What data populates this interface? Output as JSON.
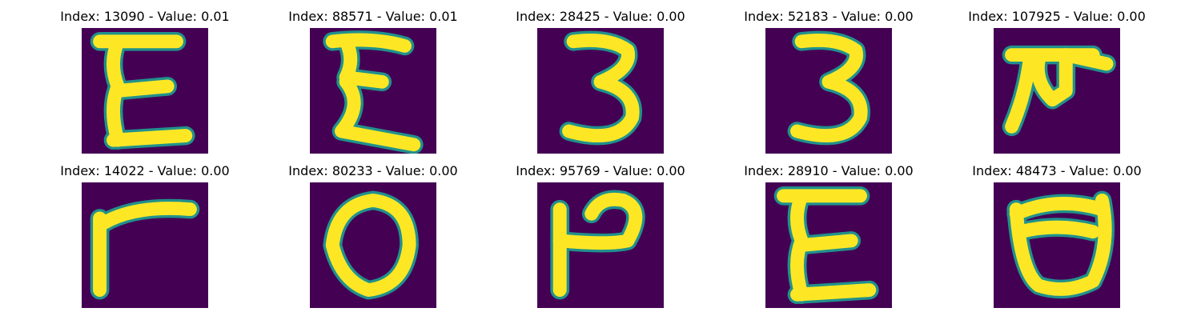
{
  "figure": {
    "colors": {
      "background": "#440154",
      "glyph": "#fde725",
      "glyph_edge": "#21918c"
    },
    "panels": [
      {
        "index": "13090",
        "value": "0.01",
        "title": "Index: 13090 - Value: 0.01",
        "glyph": "E"
      },
      {
        "index": "88571",
        "value": "0.01",
        "title": "Index: 88571 - Value: 0.01",
        "glyph": "Σ-like"
      },
      {
        "index": "28425",
        "value": "0.00",
        "title": "Index: 28425 - Value: 0.00",
        "glyph": "3"
      },
      {
        "index": "52183",
        "value": "0.00",
        "title": "Index: 52183 - Value: 0.00",
        "glyph": "3"
      },
      {
        "index": "107925",
        "value": "0.00",
        "title": "Index: 107925 - Value: 0.00",
        "glyph": "rotated-F"
      },
      {
        "index": "14022",
        "value": "0.00",
        "title": "Index: 14022 - Value: 0.00",
        "glyph": "rotated-T"
      },
      {
        "index": "80233",
        "value": "0.00",
        "title": "Index: 80233 - Value: 0.00",
        "glyph": "O"
      },
      {
        "index": "95769",
        "value": "0.00",
        "title": "Index: 95769 - Value: 0.00",
        "glyph": "rotated-P"
      },
      {
        "index": "28910",
        "value": "0.00",
        "title": "Index: 28910 - Value: 0.00",
        "glyph": "E"
      },
      {
        "index": "48473",
        "value": "0.00",
        "title": "Index: 48473 - Value: 0.00",
        "glyph": "rotated-D"
      }
    ]
  }
}
